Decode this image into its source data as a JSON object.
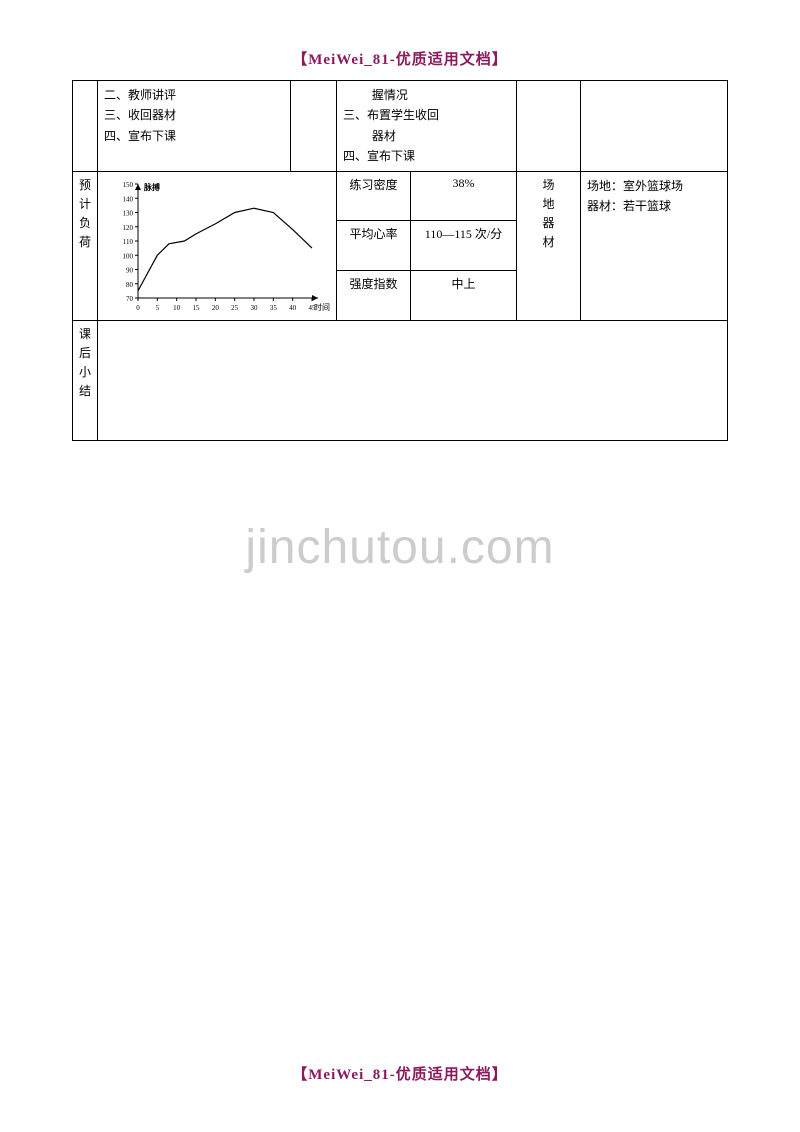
{
  "header": "【MeiWei_81-优质适用文档】",
  "footer": "【MeiWei_81-优质适用文档】",
  "watermark": "jinchutou.com",
  "row1": {
    "left": {
      "l1": "二、教师讲评",
      "l2": "三、收回器材",
      "l3": "四、宣布下课"
    },
    "mid": {
      "l1": "握情况",
      "l2": "三、布置学生收回",
      "l2b": "器材",
      "l3": "四、宣布下课"
    }
  },
  "load": {
    "label_c1": "预",
    "label_c2": "计",
    "label_c3": "负",
    "label_c4": "荷",
    "chart": {
      "y_label": "脉搏",
      "x_label": "时间",
      "y_ticks": [
        "70",
        "80",
        "90",
        "100",
        "110",
        "120",
        "130",
        "140",
        "150"
      ],
      "x_ticks": [
        "0",
        "5",
        "10",
        "15",
        "20",
        "25",
        "30",
        "35",
        "40",
        "45"
      ],
      "points": [
        {
          "x": 0,
          "y": 75
        },
        {
          "x": 2,
          "y": 85
        },
        {
          "x": 5,
          "y": 100
        },
        {
          "x": 8,
          "y": 108
        },
        {
          "x": 12,
          "y": 110
        },
        {
          "x": 15,
          "y": 115
        },
        {
          "x": 20,
          "y": 122
        },
        {
          "x": 25,
          "y": 130
        },
        {
          "x": 30,
          "y": 133
        },
        {
          "x": 35,
          "y": 130
        },
        {
          "x": 40,
          "y": 118
        },
        {
          "x": 45,
          "y": 105
        }
      ],
      "line_color": "#000000",
      "axis_color": "#000000"
    },
    "metrics": {
      "density_label": "练习密度",
      "density_value": "38%",
      "hr_label": "平均心率",
      "hr_value": "110—115 次/分",
      "intensity_label": "强度指数",
      "intensity_value": "中上"
    },
    "venue": {
      "label_c1": "场",
      "label_c2": "地",
      "label_c3": "器",
      "label_c4": "材",
      "line1": "场地：室外篮球场",
      "line2": "器材：若干篮球"
    }
  },
  "summary": {
    "c1": "课",
    "c2": "后",
    "c3": "小",
    "c4": "结"
  }
}
